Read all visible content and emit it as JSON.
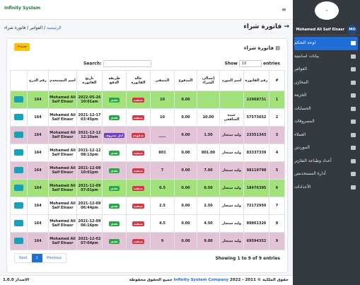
{
  "sidebar": {
    "user": "Mohamed Ali Saif Elnasr",
    "avatar": "MO",
    "menu": [
      "لوحة التحكم",
      "بيانات اساسية",
      "الفواتير",
      "المخازن",
      "الخزينة",
      "الحسابات",
      "المصروفات",
      "العملاء",
      "الموردين",
      "أعداد وطباعة التقارير",
      "أدارة المستخدمين",
      "الأعدادات"
    ]
  },
  "header": {
    "brand": "Infinity System"
  },
  "page": {
    "title": "فاتورة شراء",
    "breadcrumb": [
      "الرئيسية",
      "الفواتير",
      "فاتورة شراء"
    ]
  },
  "card": {
    "title": "فاتورة شراء",
    "new_button": "جديد+",
    "show_label": "Show",
    "show_value": "10",
    "show_suffix": "entries",
    "search_label": "Search:"
  },
  "table": {
    "columns": [
      "#",
      "رقم الفاتورة",
      "اسم المورد",
      "إجمالي الشراء",
      "المدفوع",
      "المتبقي",
      "حالة الفاتورة",
      "طريقة الدفع",
      "تاريخ الفاتورة",
      "اسم المستخدم",
      "رقم الدرج"
    ],
    "rows": [
      [
        "1",
        "22968731",
        "",
        "",
        "0.00",
        "10",
        "متبقية",
        "نقدي",
        "2022-05-26 10:01am",
        "Mohamed Ali Saif Elnasr",
        "164"
      ],
      [
        "2",
        "57573652",
        "عبده الشافعي",
        "10.00",
        "0.00",
        "10",
        "متبقية",
        "نقدي",
        "2021-12-17 03:45pm",
        "Mohamed Ali Saif Elnasr",
        "164"
      ],
      [
        "3",
        "23351343",
        "وليد سنجار",
        "1.50",
        "0.00",
        "____",
        "مدفوعة",
        "آجل مصروف",
        "2021-12-12 12:10am",
        "Mohamed Ali Saif Elnasr",
        "164"
      ],
      [
        "4",
        "83337339",
        "وليد سنجار",
        "801.00",
        "0.00",
        "801",
        "متبقية",
        "نقدي",
        "2021-12-12 08:13pm",
        "Mohamed Ali Saif Elnasr",
        "164"
      ],
      [
        "5",
        "98119798",
        "وليد سنجار",
        "7.00",
        "0.00",
        "7",
        "متبقية",
        "نقدي",
        "2021-12-09 10:01pm",
        "Mohamed Ali Saif Elnasr",
        "164"
      ],
      [
        "6",
        "18476395",
        "وليد سنجار",
        "0.50",
        "0.00",
        "0.5",
        "متبقية",
        "نقدي",
        "2021-12-09 07:01pm",
        "Mohamed Ali Saif Elnasr",
        "164"
      ],
      [
        "7",
        "72172950",
        "وليد سنجار",
        "2.50",
        "0.00",
        "2.5",
        "متبقية",
        "نقدي",
        "2021-12-09 06:44pm",
        "Mohamed Ali Saif Elnasr",
        "164"
      ],
      [
        "8",
        "89861326",
        "وليد سنجار",
        "4.50",
        "0.00",
        "4.5",
        "متبقية",
        "نقدي",
        "2021-12-09 06:16pm",
        "Mohamed Ali Saif Elnasr",
        "164"
      ],
      [
        "9",
        "69594352",
        "وليد سنجار",
        "9.00",
        "0.00",
        "9",
        "متبقية",
        "نقدي",
        "2021-12-02 07:04pm",
        "Mohamed Ali Saif Elnasr",
        "164"
      ]
    ],
    "row_colors": [
      "#a3e27a",
      "#ffffff",
      "#e3c3d6",
      "#ffffff",
      "#e3c3d6",
      "#a3e27a",
      "#ffffff",
      "#ffffff",
      "#e3c3d6"
    ],
    "status_colors": [
      "#dc3545",
      "#dc3545",
      "#dc3545",
      "#dc3545",
      "#dc3545",
      "#dc3545",
      "#dc3545",
      "#dc3545",
      "#dc3545"
    ],
    "payment_colors": [
      "#28a745",
      "#28a745",
      "#6f42c1",
      "#28a745",
      "#28a745",
      "#28a745",
      "#28a745",
      "#28a745",
      "#28a745"
    ]
  },
  "pagination": {
    "info": "Showing 1 to 9 of 9 entries",
    "previous": "Previous",
    "current": "1",
    "next": "Next"
  },
  "footer": {
    "copyright": "حقوق الملكية © 2011 - 2022",
    "company": "Infinity System Company",
    "rights": "جميع الحقوق محفوظة",
    "version": "الاصدار 1.0.0"
  }
}
